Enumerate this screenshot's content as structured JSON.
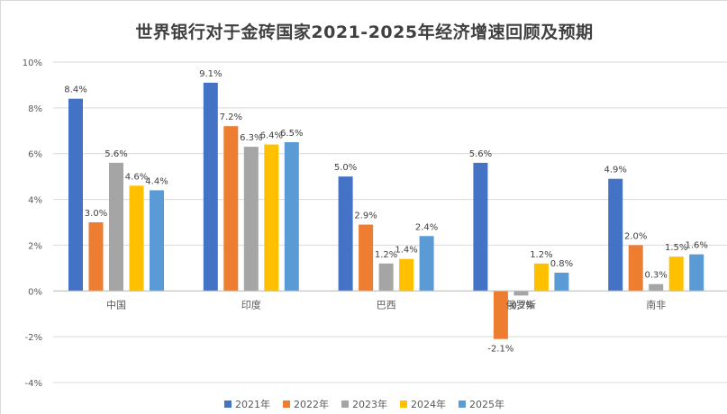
{
  "chart_data": {
    "type": "bar",
    "title": "世界银行对于金砖国家2021-2025年经济增速回顾及预期",
    "categories": [
      "中国",
      "印度",
      "巴西",
      "俄罗斯",
      "南非"
    ],
    "series": [
      {
        "name": "2021年",
        "color": "#4472c4",
        "values": [
          8.4,
          9.1,
          5.0,
          5.6,
          4.9
        ],
        "labels": [
          "8.4%",
          "9.1%",
          "5.0%",
          "5.6%",
          "4.9%"
        ]
      },
      {
        "name": "2022年",
        "color": "#ed7d31",
        "values": [
          3.0,
          7.2,
          2.9,
          -2.1,
          2.0
        ],
        "labels": [
          "3.0%",
          "7.2%",
          "2.9%",
          "-2.1%",
          "2.0%"
        ]
      },
      {
        "name": "2023年",
        "color": "#a5a5a5",
        "values": [
          5.6,
          6.3,
          1.2,
          -0.2,
          0.3
        ],
        "labels": [
          "5.6%",
          "6.3%",
          "1.2%",
          "-0.2%",
          "0.3%"
        ]
      },
      {
        "name": "2024年",
        "color": "#ffc000",
        "values": [
          4.6,
          6.4,
          1.4,
          1.2,
          1.5
        ],
        "labels": [
          "4.6%",
          "6.4%",
          "1.4%",
          "1.2%",
          "1.5%"
        ]
      },
      {
        "name": "2025年",
        "color": "#5b9bd5",
        "values": [
          4.4,
          6.5,
          2.4,
          0.8,
          1.6
        ],
        "labels": [
          "4.4%",
          "6.5%",
          "2.4%",
          "0.8%",
          "1.6%"
        ]
      }
    ],
    "ylim": [
      -4,
      10
    ],
    "yticks": [
      -4,
      -2,
      0,
      2,
      4,
      6,
      8,
      10
    ],
    "ytick_labels": [
      "-4%",
      "-2%",
      "0%",
      "2%",
      "4%",
      "6%",
      "8%",
      "10%"
    ],
    "grid": true,
    "legend_position": "bottom"
  }
}
